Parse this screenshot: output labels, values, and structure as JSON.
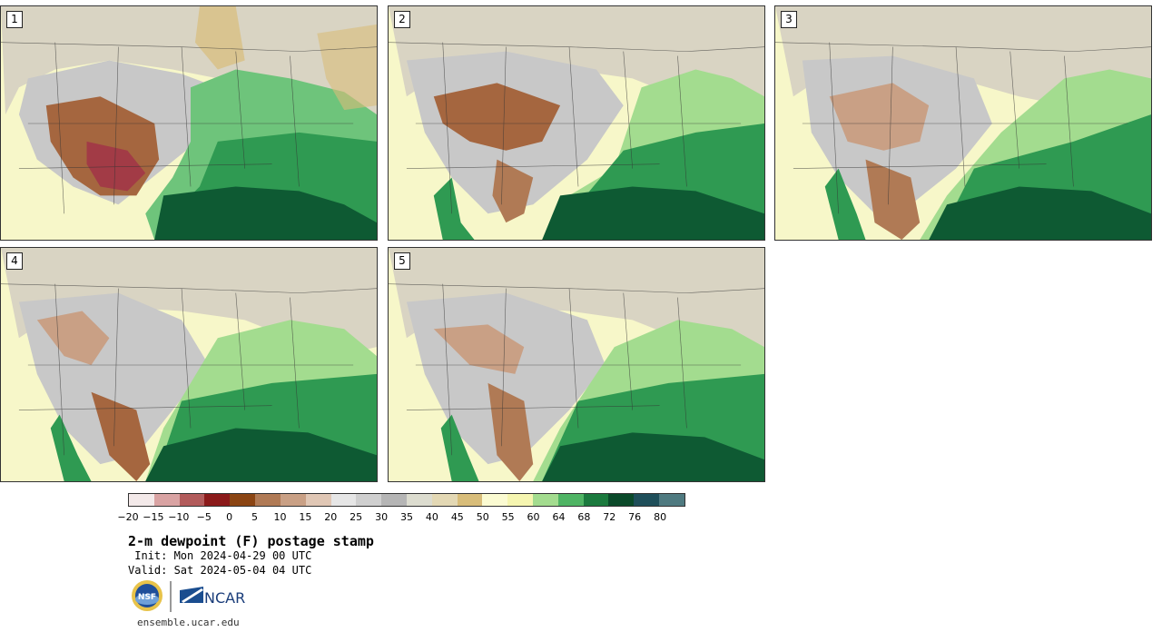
{
  "panels": [
    {
      "label": "1"
    },
    {
      "label": "2"
    },
    {
      "label": "3"
    },
    {
      "label": "4"
    },
    {
      "label": "5"
    }
  ],
  "colorbar": {
    "colors": [
      "#f3e9e9",
      "#d9a3a3",
      "#b25b5b",
      "#8b1a1a",
      "#8b4513",
      "#b07a55",
      "#c9a085",
      "#e0c7b5",
      "#e6e6e6",
      "#cfcfcf",
      "#b5b5b5",
      "#dcdccf",
      "#e3d8b4",
      "#d8bd7a",
      "#fbfbd2",
      "#f5f5b0",
      "#a3dc8f",
      "#4fb464",
      "#1b7a3e",
      "#0b4a2a",
      "#1f4f5a",
      "#4f7a80"
    ],
    "tick_labels": [
      "−20",
      "−15",
      "−10",
      "−5",
      "0",
      "5",
      "10",
      "15",
      "20",
      "25",
      "30",
      "35",
      "40",
      "45",
      "50",
      "55",
      "60",
      "64",
      "68",
      "72",
      "76",
      "80"
    ]
  },
  "title": "2-m dewpoint (F) postage stamp",
  "init": " Init: Mon 2024-04-29 00 UTC",
  "valid": "Valid: Sat 2024-05-04 04 UTC",
  "logos": {
    "nsf": "NSF",
    "ncar": "NCAR"
  },
  "website": "ensemble.ucar.edu"
}
